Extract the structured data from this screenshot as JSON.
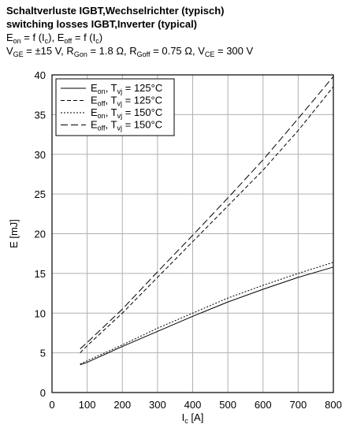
{
  "chart_data": {
    "type": "line",
    "title": [
      "Schaltverluste IGBT,Wechselrichter (typisch)",
      "switching losses IGBT,Inverter (typical)"
    ],
    "subtitle": [
      [
        "E",
        "on",
        " = f (I",
        "c",
        "), E",
        "off",
        " = f (I",
        "c",
        ")"
      ],
      [
        "V",
        "GE",
        " = ±15 V, R",
        "Gon",
        " = 1.8 Ω, R",
        "Goff",
        " = 0.75 Ω, V",
        "CE",
        " = 300 V"
      ]
    ],
    "xlabel": [
      "I",
      "c",
      " [A]"
    ],
    "ylabel": "E [mJ]",
    "x": [
      80,
      100,
      200,
      300,
      400,
      500,
      600,
      700,
      800
    ],
    "series": [
      {
        "name": [
          "E",
          "on",
          ", T",
          "vj",
          " = 125°C"
        ],
        "color": "#000000",
        "dash": "none",
        "values": [
          3.5,
          3.8,
          5.8,
          7.7,
          9.6,
          11.4,
          13.0,
          14.5,
          15.8
        ]
      },
      {
        "name": [
          "E",
          "off",
          ", T",
          "vj",
          " = 125°C"
        ],
        "color": "#000000",
        "dash": "5,3",
        "values": [
          5.0,
          5.9,
          10.0,
          14.5,
          19.0,
          23.5,
          28.0,
          33.0,
          38.5
        ]
      },
      {
        "name": [
          "E",
          "on",
          ", T",
          "vj",
          " = 150°C"
        ],
        "color": "#000000",
        "dash": "2,2",
        "values": [
          3.6,
          4.0,
          6.0,
          8.1,
          10.0,
          11.9,
          13.5,
          15.0,
          16.4
        ]
      },
      {
        "name": [
          "E",
          "off",
          ", T",
          "vj",
          " = 150°C"
        ],
        "color": "#000000",
        "dash": "9,4",
        "values": [
          5.5,
          6.3,
          10.5,
          15.2,
          19.8,
          24.5,
          29.3,
          34.5,
          39.8
        ]
      }
    ],
    "xlim": [
      0,
      800
    ],
    "xticks": [
      0,
      100,
      200,
      300,
      400,
      500,
      600,
      700,
      800
    ],
    "ylim": [
      0,
      40
    ],
    "yticks": [
      0,
      5,
      10,
      15,
      20,
      25,
      30,
      35,
      40
    ],
    "grid": true,
    "legend": "upper left"
  }
}
